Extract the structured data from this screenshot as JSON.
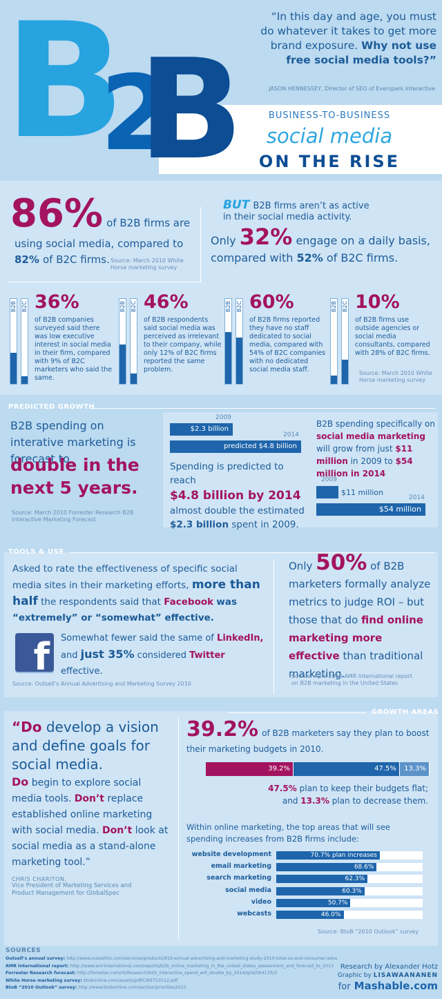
{
  "header": {
    "logo_letters": [
      "B",
      "2",
      "B"
    ],
    "quote": "“In this day and age, you must do whatever it takes to get more brand exposure.",
    "quote_emph": "Why not use free social media tools?”",
    "attribution": "JASON HENNESSEY, Director of SEO of Everspark Interactive",
    "subtitle_1": "BUSINESS-TO-BUSINESS",
    "subtitle_2": "social media",
    "subtitle_3": "ON THE RISE"
  },
  "intro": {
    "left_pct": "86%",
    "left_text_1": "of B2B firms are",
    "left_text_2": "using social media, compared to",
    "left_text_3_pct": "82%",
    "left_text_3": "of B2C firms.",
    "left_source": "Source: March 2010 White Horse marketing survey",
    "right_but": "BUT",
    "right_text_1": "B2B firms aren’t as active",
    "right_text_2": "in their social media activity.",
    "right_only": "Only",
    "right_pct": "32%",
    "right_text_3": "engage on a daily basis,",
    "right_text_4a": "compared with",
    "right_text_4b": "52%",
    "right_text_4c": "of B2C firms."
  },
  "stats": {
    "bar_label_b2b": "B2B",
    "bar_label_b2c": "B2C",
    "items": [
      {
        "pct": "36%",
        "text": "of B2B companies surveyed said there was low executive interest in social media in their firm, compared with 9% of B2C marketers who said the same.",
        "b2b": 36,
        "b2c": 9
      },
      {
        "pct": "46%",
        "text": "of B2B respondents said social media was perceived as irrelevant to their company, while only 12% of B2C firms reported the same problem.",
        "b2b": 46,
        "b2c": 12
      },
      {
        "pct": "60%",
        "text": "of B2B firms reported they have no staff dedicated to social media, compared with 54% of B2C companies with no dedicated social media staff.",
        "b2b": 60,
        "b2c": 54
      },
      {
        "pct": "10%",
        "text": "of B2B firms use outside agencies or social media consultants, compared with 28% of B2C firms.",
        "b2b": 10,
        "b2c": 28
      }
    ],
    "source": "Source: March 2010 White Horse marketing survey"
  },
  "predicted": {
    "heading": "PREDICTED GROWTH",
    "left_text": "B2B spending on interative marketing is forecast to",
    "left_big": "double in the next 5 years.",
    "left_source": "Source: March 2010 Forrester Research B2B Interactive Marketing Forecast",
    "bar1_year": "2009",
    "bar1_label": "$2.3 billion",
    "bar1_value": 2.3,
    "bar2_year": "2014",
    "bar2_label": "predicted $4.8 billion",
    "bar2_value": 4.8,
    "mid_text_1": "Spending is predicted to reach",
    "mid_big": "$4.8 billion by 2014",
    "mid_text_2": "almost double the estimated",
    "mid_text_3": "$2.3 billion",
    "mid_text_4": "spent in 2009.",
    "right_text_1": "B2B spending specifically on",
    "right_emph_1": "social media marketing",
    "right_text_2": "will grow from just",
    "right_emph_2": "$11 million",
    "right_text_3": "in 2009 to",
    "right_emph_3": "$54 million in 2014",
    "sm_bar1_year": "2009",
    "sm_bar1_label": "$11 million",
    "sm_bar1_value": 11,
    "sm_bar2_year": "2014",
    "sm_bar2_label": "$54 million",
    "sm_bar2_value": 54
  },
  "tools": {
    "heading": "TOOLS & USE",
    "text_1": "Asked to rate the effectiveness of specific social media sites in their marketing efforts,",
    "emph_1": "more than half",
    "text_2": "the respondents said that",
    "emph_2": "Facebook",
    "text_3": "was “extremely” or “somewhat” effective.",
    "text_4": "Somewhat fewer said the same of",
    "emph_4": "LinkedIn,",
    "text_5": "and",
    "emph_5": "just 35%",
    "text_6": "considered",
    "emph_6": "Twitter",
    "text_7": "effective.",
    "source": "Source: Outsell’s Annual Advertising and Marketing Survey 2010",
    "facebook_glyph": "f",
    "right_only": "Only",
    "right_pct": "50%",
    "right_text_1": "of B2B marketers formally analyze metrics to judge ROI – but those that do",
    "right_emph": "find online marketing more effective",
    "right_text_2": "than traditional marketing.",
    "right_source": "Source: April 2010 AMR International report on B2B marketing in the United States"
  },
  "growth": {
    "heading": "GROWTH AREAS",
    "quote_lines": [
      {
        "emph": "“Do",
        "rest": " develop a vision and define goals for social media."
      },
      {
        "emph": "Do",
        "rest": " begin to explore social media tools."
      },
      {
        "emph": "Don’t",
        "rest": " replace established online marketing with social media."
      },
      {
        "emph": "Don’t",
        "rest": " look at social media as a stand-alone marketing tool.”"
      }
    ],
    "quote_author": "CHRIS CHARITON,",
    "quote_author_title": "Vice President of Marketing Services and Product Management for GlobalSpec",
    "big_pct": "39.2%",
    "big_text": "of B2B marketers say they plan to boost their marketing budgets in 2010.",
    "budget_bar": [
      {
        "label": "39.2%",
        "value": 39.2,
        "color": "#a3135f"
      },
      {
        "label": "47.5%",
        "value": 47.5,
        "color": "#1e65ab"
      },
      {
        "label": "13.3%",
        "value": 13.3,
        "color": "#5b93c9"
      }
    ],
    "flat_pct": "47.5%",
    "flat_text": "plan to keep their budgets flat;",
    "dec_and": "and",
    "dec_pct": "13.3%",
    "dec_text": "plan to decrease them.",
    "areas_intro": "Within online marketing, the top areas that will see spending increases from B2B firms include:",
    "areas": [
      {
        "label": "website development",
        "value": 70.7,
        "text": "70.7% plan increases"
      },
      {
        "label": "email marketing",
        "value": 68.6,
        "text": "68.6%"
      },
      {
        "label": "search marketing",
        "value": 62.3,
        "text": "62.3%"
      },
      {
        "label": "social media",
        "value": 60.3,
        "text": "60.3%"
      },
      {
        "label": "video",
        "value": 50.7,
        "text": "50.7%"
      },
      {
        "label": "webcasts",
        "value": 46.0,
        "text": "46.0%"
      }
    ],
    "source": "Source: BtoB “2010 Outlook” survey"
  },
  "sources": {
    "heading": "SOURCES",
    "items": [
      {
        "name": "Outsell’s annual survey:",
        "url": "http://www.outsellinc.com/services/products/919-annual-advertising-and-marketing-study-2010-total-us-and-consumer-advertising"
      },
      {
        "name": "AMR International report:",
        "url": "http://www.amrinternational.com/reports/b2b_online_marketing_in_the_united_states_assessment_and_forecast_to_2013"
      },
      {
        "name": "Forrester Research forecast:",
        "url": "http://forrester.com/rb/Research/b2b_interactive_spend_will_double_by_2014/q/id/56417/t/2"
      },
      {
        "name": "White Horse marketing survey:",
        "url": "btobonline.com/assets/pdf/CI69753512.pdf"
      },
      {
        "name": "BtoB “2010 Outlook” survey:",
        "url": "http://www.btobonline.com/section/priorities2010"
      }
    ],
    "research_by": "Research by Alexander Hotz",
    "graphic_by": "Graphic by",
    "graphic_name": "LISAWAANANEN",
    "for_text": "for",
    "mashable": "Mashable.com"
  }
}
